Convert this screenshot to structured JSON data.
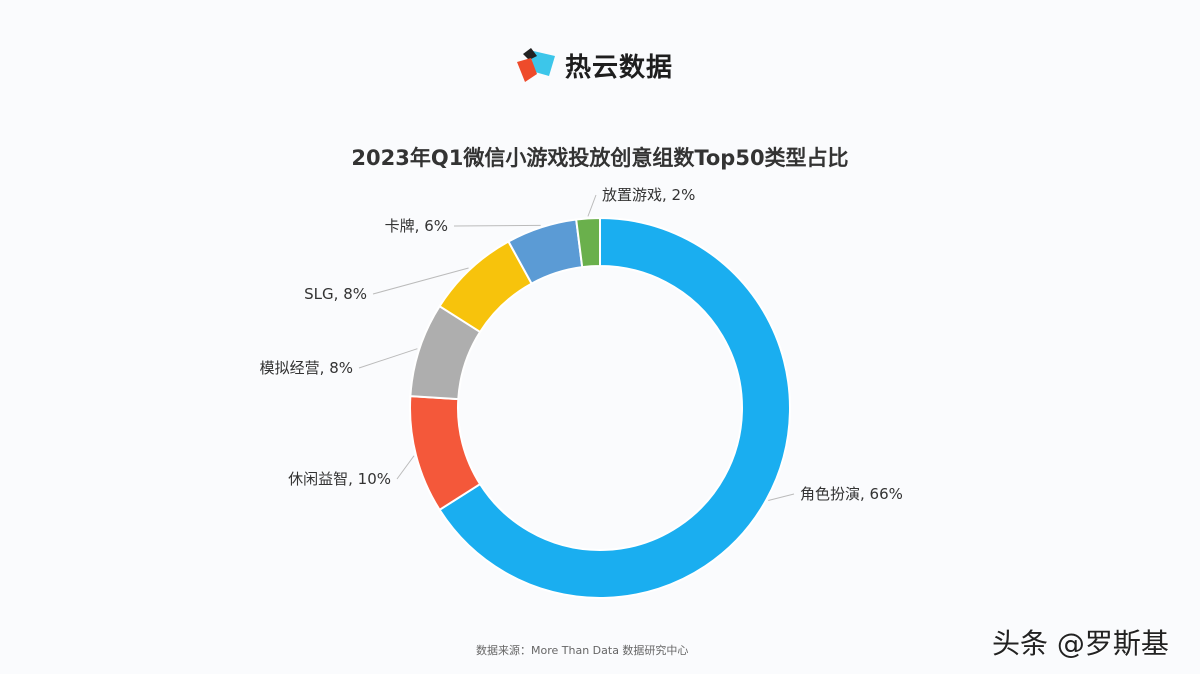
{
  "brand": {
    "name": "热云数据"
  },
  "chart_data": {
    "type": "pie",
    "donut": true,
    "title": "2023年Q1微信小游戏投放创意组数Top50类型占比",
    "start": "top",
    "direction": "clockwise",
    "slices": [
      {
        "name": "角色扮演",
        "value": 66,
        "label": "角色扮演, 66%",
        "color": "#1aaef0"
      },
      {
        "name": "休闲益智",
        "value": 10,
        "label": "休闲益智, 10%",
        "color": "#f4583a"
      },
      {
        "name": "模拟经营",
        "value": 8,
        "label": "模拟经营, 8%",
        "color": "#aeaeae"
      },
      {
        "name": "SLG",
        "value": 8,
        "label": "SLG, 8%",
        "color": "#f7c30c"
      },
      {
        "name": "卡牌",
        "value": 6,
        "label": "卡牌, 6%",
        "color": "#5b9bd5"
      },
      {
        "name": "放置游戏",
        "value": 2,
        "label": "放置游戏, 2%",
        "color": "#6ab04c"
      }
    ]
  },
  "footer": {
    "source": "数据来源：More Than Data 数据研究中心"
  },
  "watermark": "头条 @罗斯基"
}
